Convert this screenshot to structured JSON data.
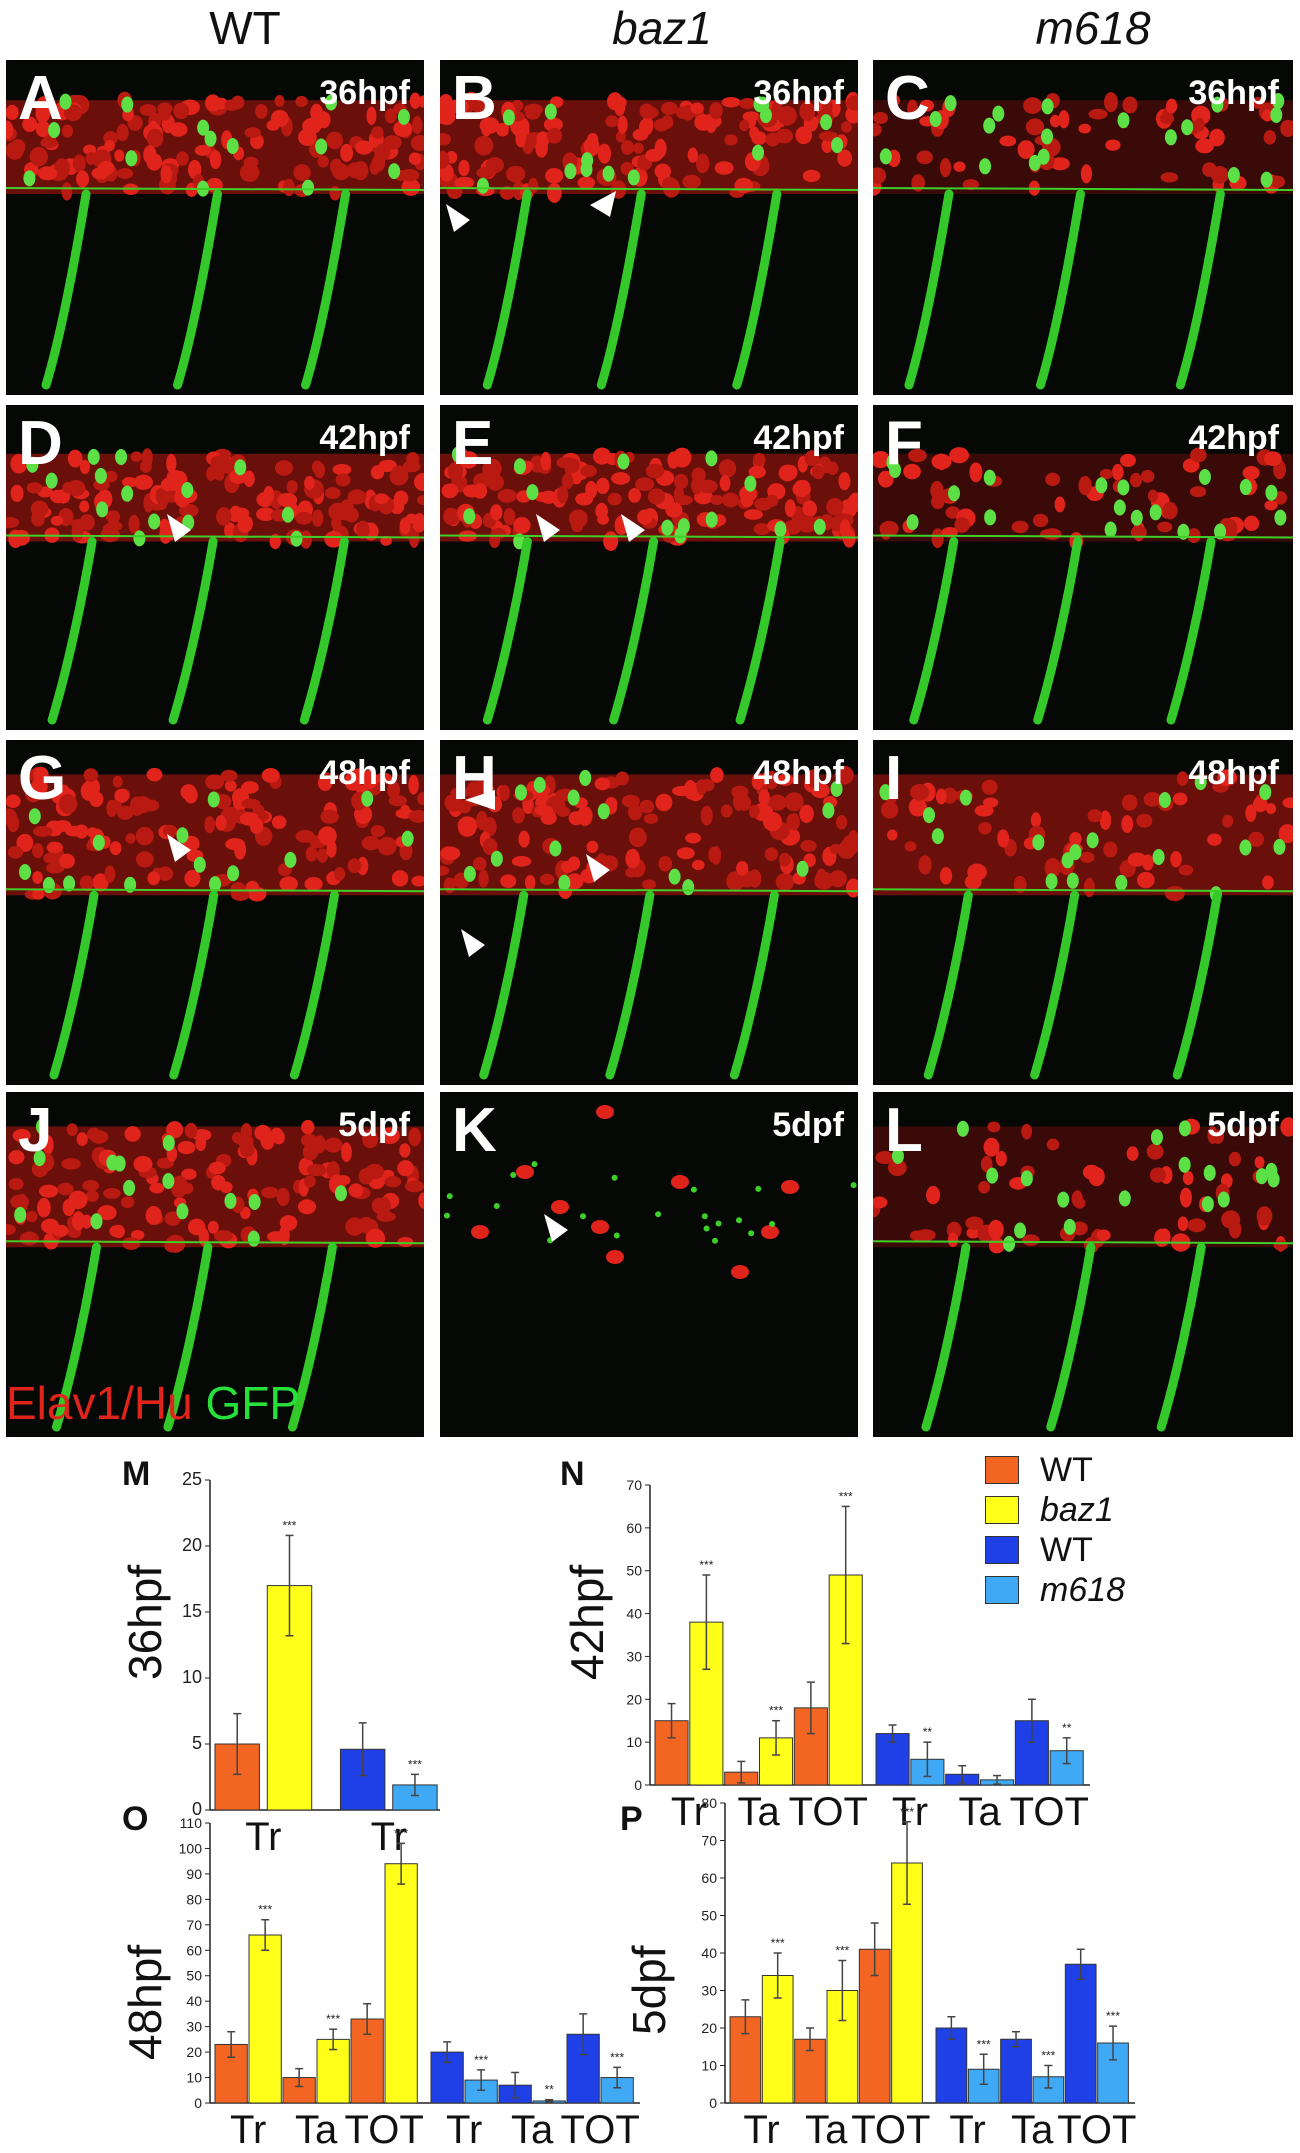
{
  "columns": [
    {
      "label": "WT",
      "italic": false
    },
    {
      "label": "baz1",
      "italic": true
    },
    {
      "label": "m618",
      "italic": true
    }
  ],
  "panels": [
    {
      "letter": "A",
      "stage": "36hpf"
    },
    {
      "letter": "B",
      "stage": "36hpf"
    },
    {
      "letter": "C",
      "stage": "36hpf"
    },
    {
      "letter": "D",
      "stage": "42hpf"
    },
    {
      "letter": "E",
      "stage": "42hpf"
    },
    {
      "letter": "F",
      "stage": "42hpf"
    },
    {
      "letter": "G",
      "stage": "48hpf"
    },
    {
      "letter": "H",
      "stage": "48hpf"
    },
    {
      "letter": "I",
      "stage": "48hpf"
    },
    {
      "letter": "J",
      "stage": "5dpf"
    },
    {
      "letter": "K",
      "stage": "5dpf"
    },
    {
      "letter": "L",
      "stage": "5dpf"
    }
  ],
  "stain_legend": {
    "red": "Elav1/Hu",
    "green": "GFP"
  },
  "colors": {
    "wt_baz": "#f26522",
    "baz1": "#ffff1a",
    "wt_m618": "#1f40e6",
    "m618": "#3fa9f5",
    "elav_red": "#e0241c",
    "gfp_green": "#27e03a"
  },
  "legend": [
    {
      "label": "WT",
      "color": "#f26522",
      "italic": false
    },
    {
      "label": "baz1",
      "color": "#ffff1a",
      "italic": true
    },
    {
      "label": "WT",
      "color": "#1f40e6",
      "italic": false
    },
    {
      "label": "m618",
      "color": "#3fa9f5",
      "italic": true
    }
  ],
  "chart_data": [
    {
      "panel": "M",
      "type": "bar",
      "ylabel": "36hpf",
      "ylim": [
        0,
        25
      ],
      "yticks": [
        0,
        5,
        10,
        15,
        20,
        25
      ],
      "groups": [
        {
          "label": "Tr"
        },
        {
          "label": "Tr"
        }
      ],
      "bars": [
        {
          "value": 5,
          "err": 2.3,
          "color": "#f26522",
          "sig": ""
        },
        {
          "value": 17,
          "err": 3.8,
          "color": "#ffff1a",
          "sig": "***"
        },
        {
          "value": 4.6,
          "err": 2.0,
          "color": "#1f40e6",
          "sig": ""
        },
        {
          "value": 1.9,
          "err": 0.8,
          "color": "#3fa9f5",
          "sig": "***"
        }
      ],
      "layout": [
        0,
        1,
        2.4,
        3.4
      ]
    },
    {
      "panel": "N",
      "type": "bar",
      "ylabel": "42hpf",
      "ylim": [
        0,
        70
      ],
      "yticks": [
        0,
        10,
        20,
        30,
        40,
        50,
        60,
        70
      ],
      "groups": [
        {
          "label": "Tr"
        },
        {
          "label": "Ta"
        },
        {
          "label": "TOT"
        },
        {
          "label": "Tr"
        },
        {
          "label": "Ta"
        },
        {
          "label": "TOT"
        }
      ],
      "bars": [
        {
          "value": 15,
          "err": 4,
          "color": "#f26522",
          "sig": ""
        },
        {
          "value": 38,
          "err": 11,
          "color": "#ffff1a",
          "sig": "***"
        },
        {
          "value": 3,
          "err": 2.5,
          "color": "#f26522",
          "sig": ""
        },
        {
          "value": 11,
          "err": 4,
          "color": "#ffff1a",
          "sig": "***"
        },
        {
          "value": 18,
          "err": 6,
          "color": "#f26522",
          "sig": ""
        },
        {
          "value": 49,
          "err": 16,
          "color": "#ffff1a",
          "sig": "***"
        },
        {
          "value": 12,
          "err": 2,
          "color": "#1f40e6",
          "sig": ""
        },
        {
          "value": 6,
          "err": 4,
          "color": "#3fa9f5",
          "sig": "**"
        },
        {
          "value": 2.5,
          "err": 2,
          "color": "#1f40e6",
          "sig": ""
        },
        {
          "value": 1.2,
          "err": 1,
          "color": "#3fa9f5",
          "sig": ""
        },
        {
          "value": 15,
          "err": 5,
          "color": "#1f40e6",
          "sig": ""
        },
        {
          "value": 8,
          "err": 3,
          "color": "#3fa9f5",
          "sig": "**"
        }
      ]
    },
    {
      "panel": "O",
      "type": "bar",
      "ylabel": "48hpf",
      "ylim": [
        0,
        110
      ],
      "yticks": [
        0,
        10,
        20,
        30,
        40,
        50,
        60,
        70,
        80,
        90,
        100,
        110
      ],
      "groups": [
        {
          "label": "Tr"
        },
        {
          "label": "Ta"
        },
        {
          "label": "TOT"
        },
        {
          "label": "Tr"
        },
        {
          "label": "Ta"
        },
        {
          "label": "TOT"
        }
      ],
      "bars": [
        {
          "value": 23,
          "err": 5,
          "color": "#f26522",
          "sig": ""
        },
        {
          "value": 66,
          "err": 6,
          "color": "#ffff1a",
          "sig": "***"
        },
        {
          "value": 10,
          "err": 3.5,
          "color": "#f26522",
          "sig": ""
        },
        {
          "value": 25,
          "err": 4,
          "color": "#ffff1a",
          "sig": "***"
        },
        {
          "value": 33,
          "err": 6,
          "color": "#f26522",
          "sig": ""
        },
        {
          "value": 94,
          "err": 8,
          "color": "#ffff1a",
          "sig": "***"
        },
        {
          "value": 20,
          "err": 4,
          "color": "#1f40e6",
          "sig": ""
        },
        {
          "value": 9,
          "err": 4,
          "color": "#3fa9f5",
          "sig": "***"
        },
        {
          "value": 7,
          "err": 5,
          "color": "#1f40e6",
          "sig": ""
        },
        {
          "value": 0.8,
          "err": 0.5,
          "color": "#3fa9f5",
          "sig": "**"
        },
        {
          "value": 27,
          "err": 8,
          "color": "#1f40e6",
          "sig": ""
        },
        {
          "value": 10,
          "err": 4,
          "color": "#3fa9f5",
          "sig": "***"
        }
      ]
    },
    {
      "panel": "P",
      "type": "bar",
      "ylabel": "5dpf",
      "ylim": [
        0,
        80
      ],
      "yticks": [
        0,
        10,
        20,
        30,
        40,
        50,
        60,
        70,
        80
      ],
      "groups": [
        {
          "label": "Tr"
        },
        {
          "label": "Ta"
        },
        {
          "label": "TOT"
        },
        {
          "label": "Tr"
        },
        {
          "label": "Ta"
        },
        {
          "label": "TOT"
        }
      ],
      "bars": [
        {
          "value": 23,
          "err": 4.5,
          "color": "#f26522",
          "sig": ""
        },
        {
          "value": 34,
          "err": 6,
          "color": "#ffff1a",
          "sig": "***"
        },
        {
          "value": 17,
          "err": 3,
          "color": "#f26522",
          "sig": ""
        },
        {
          "value": 30,
          "err": 8,
          "color": "#ffff1a",
          "sig": "***"
        },
        {
          "value": 41,
          "err": 7,
          "color": "#f26522",
          "sig": ""
        },
        {
          "value": 64,
          "err": 11,
          "color": "#ffff1a",
          "sig": "***"
        },
        {
          "value": 20,
          "err": 3,
          "color": "#1f40e6",
          "sig": ""
        },
        {
          "value": 9,
          "err": 4,
          "color": "#3fa9f5",
          "sig": "***"
        },
        {
          "value": 17,
          "err": 2,
          "color": "#1f40e6",
          "sig": ""
        },
        {
          "value": 7,
          "err": 3,
          "color": "#3fa9f5",
          "sig": "***"
        },
        {
          "value": 37,
          "err": 4,
          "color": "#1f40e6",
          "sig": ""
        },
        {
          "value": 16,
          "err": 4.5,
          "color": "#3fa9f5",
          "sig": "***"
        }
      ]
    }
  ]
}
